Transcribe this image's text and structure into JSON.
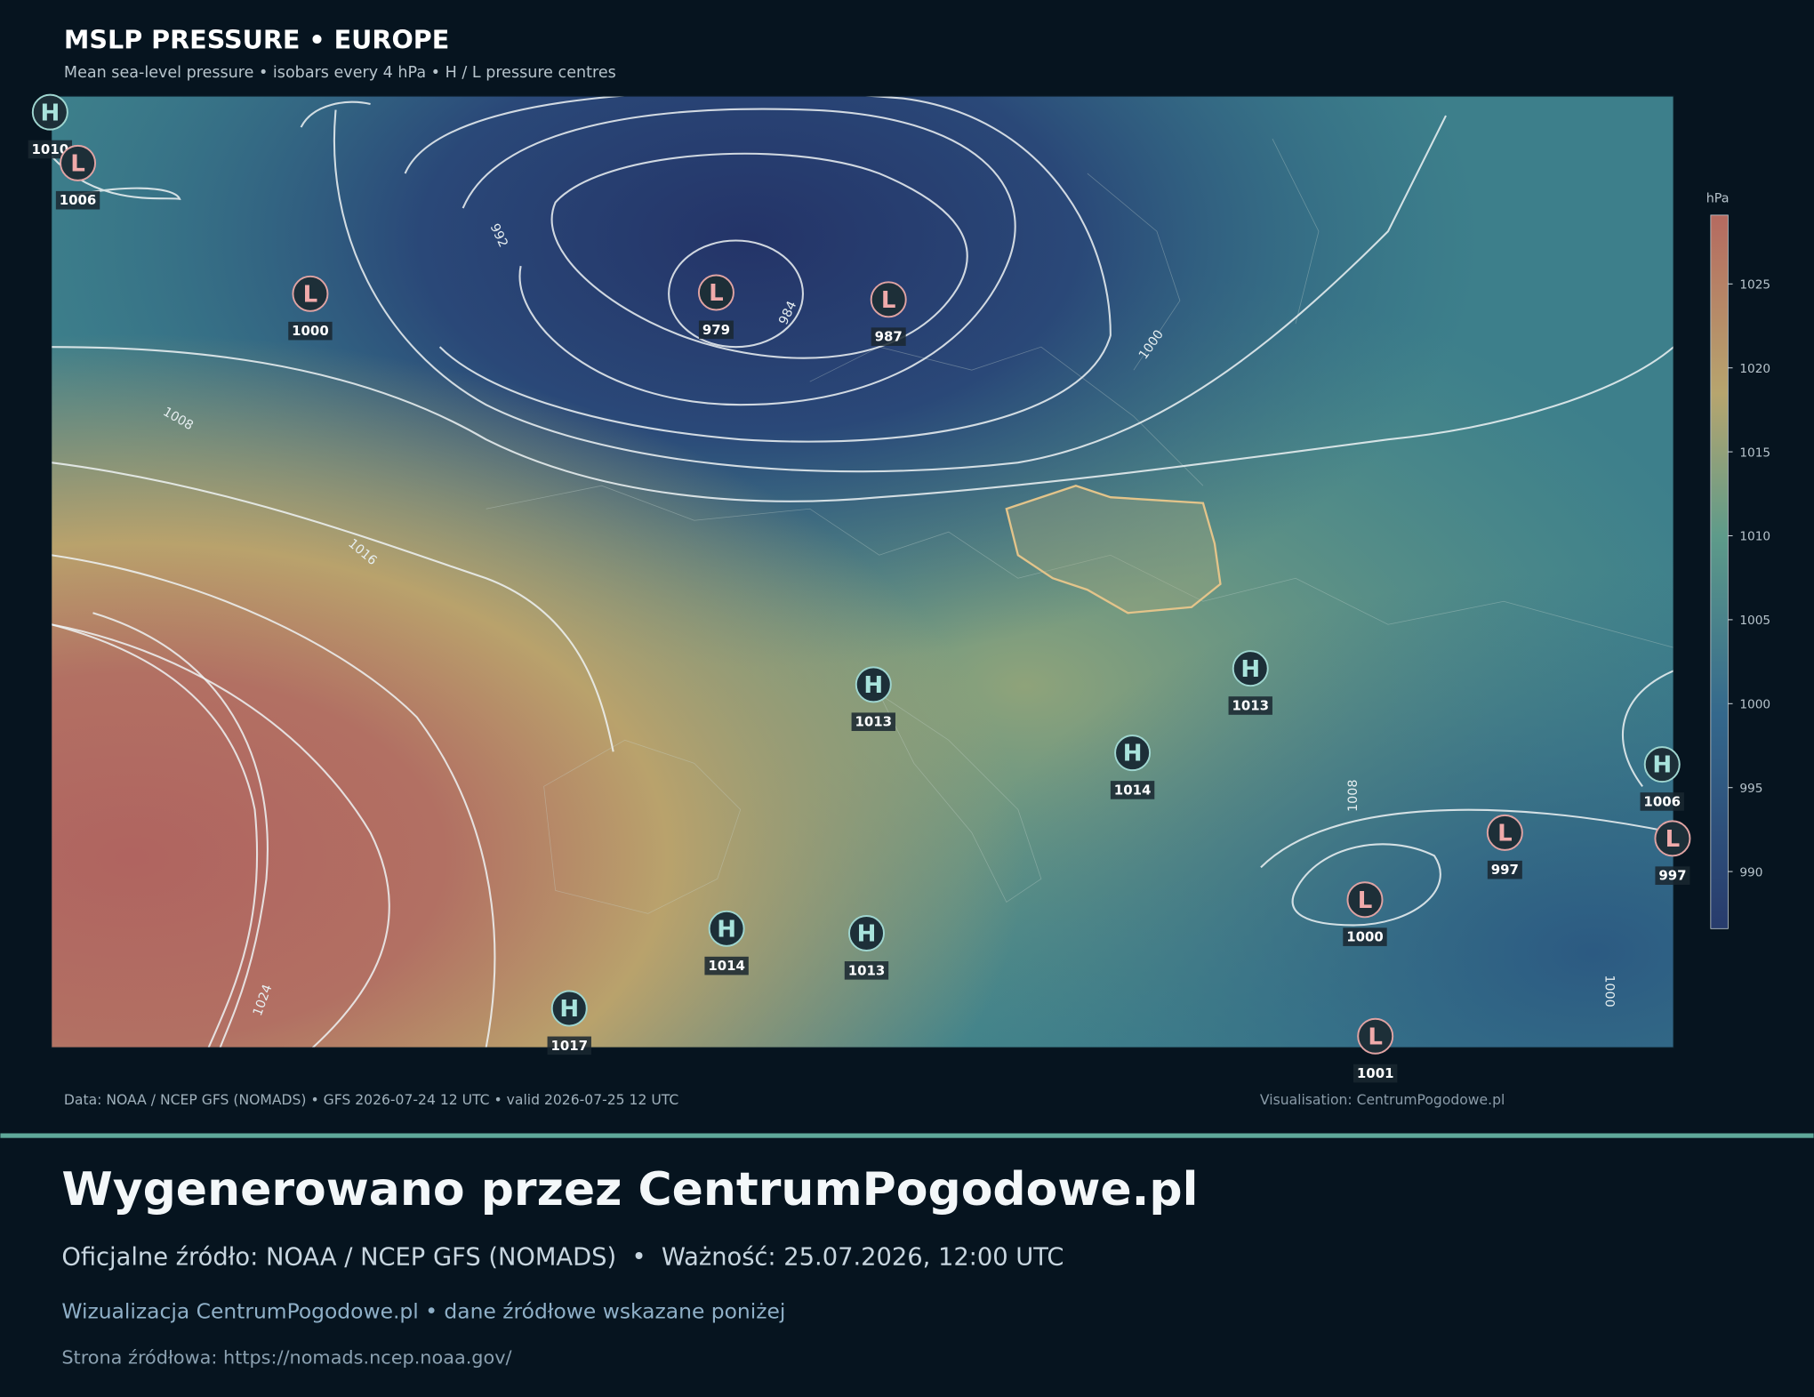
{
  "header": {
    "title": "MSLP PRESSURE • EUROPE",
    "subtitle": "Mean sea-level pressure • isobars every 4 hPa • H / L pressure centres"
  },
  "map": {
    "centres": [
      {
        "type": "H",
        "value": 1010
      },
      {
        "type": "L",
        "value": 1006
      },
      {
        "type": "L",
        "value": 1000
      },
      {
        "type": "L",
        "value": 979
      },
      {
        "type": "L",
        "value": 987
      },
      {
        "type": "H",
        "value": 1013
      },
      {
        "type": "H",
        "value": 1013
      },
      {
        "type": "H",
        "value": 1014
      },
      {
        "type": "H",
        "value": 1006
      },
      {
        "type": "L",
        "value": 997
      },
      {
        "type": "L",
        "value": 997
      },
      {
        "type": "L",
        "value": 1000
      },
      {
        "type": "H",
        "value": 1014
      },
      {
        "type": "H",
        "value": 1013
      },
      {
        "type": "H",
        "value": 1017
      },
      {
        "type": "L",
        "value": 1001
      }
    ],
    "isobar_labels": [
      "992",
      "984",
      "1000",
      "1008",
      "1016",
      "1024",
      "1008",
      "1000"
    ]
  },
  "colorbar": {
    "label": "hPa",
    "lim": [
      986.6,
      1029.1
    ],
    "ticks": [
      990,
      995,
      1000,
      1005,
      1010,
      1015,
      1020,
      1025
    ]
  },
  "footer": {
    "source": "Data: NOAA / NCEP GFS (NOMADS) • GFS 2026-07-24 12 UTC • valid 2026-07-25 12 UTC",
    "credit": "Visualisation: CentrumPogodowe.pl"
  },
  "banner": {
    "title": "Wygenerowano przez CentrumPogodowe.pl",
    "source_line": "Oficjalne źródło: NOAA / NCEP GFS (NOMADS)  •  Ważność: 25.07.2026, 12:00 UTC",
    "visualisation": "Wizualizacja CentrumPogodowe.pl • dane źródłowe wskazane poniżej",
    "source_page": "Strona źródłowa: https://nomads.ncep.noaa.gov/"
  }
}
